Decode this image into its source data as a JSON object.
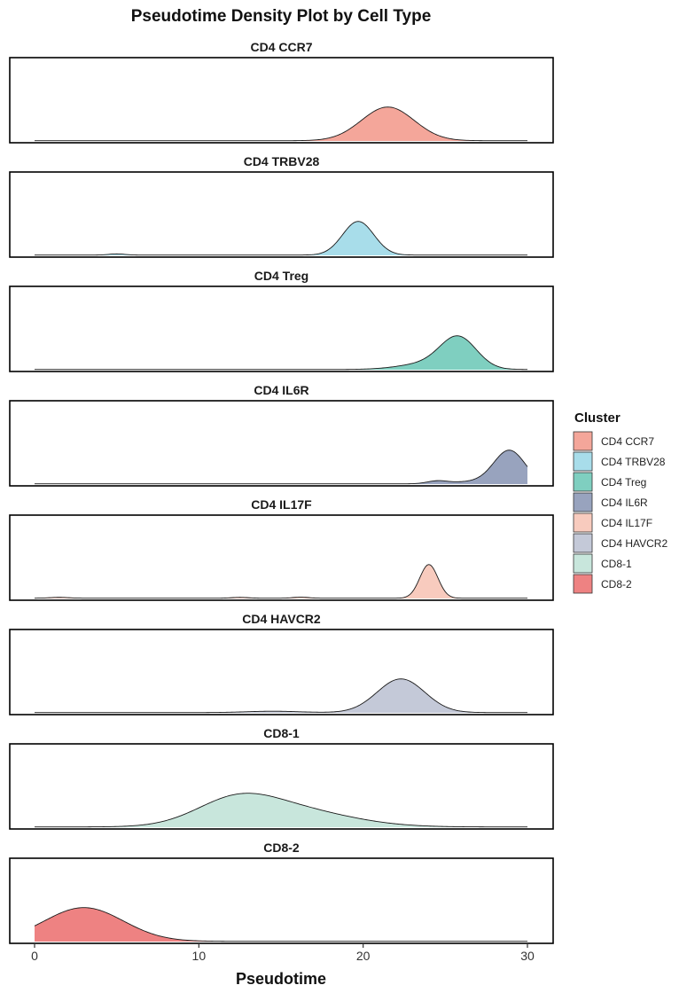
{
  "chart_data": {
    "type": "area",
    "title": "Pseudotime Density Plot by Cell Type",
    "xlabel": "Pseudotime",
    "ylabel": "",
    "xlim": [
      0,
      30
    ],
    "x_ticks": [
      0,
      10,
      20,
      30
    ],
    "grid": false,
    "legend": {
      "title": "Cluster",
      "position": "right"
    },
    "panels": [
      {
        "name": "CD4 CCR7",
        "color": "#F4A69A",
        "components": [
          {
            "mu": 21.5,
            "sigma": 1.6,
            "h": 1.0
          }
        ]
      },
      {
        "name": "CD4 TRBV28",
        "color": "#A8DDEA",
        "components": [
          {
            "mu": 19.7,
            "sigma": 0.95,
            "h": 1.0
          },
          {
            "mu": 5.0,
            "sigma": 0.5,
            "h": 0.035
          }
        ]
      },
      {
        "name": "CD4 Treg",
        "color": "#7FCFC0",
        "components": [
          {
            "mu": 25.8,
            "sigma": 1.1,
            "h": 1.0
          },
          {
            "mu": 23.8,
            "sigma": 1.6,
            "h": 0.18
          }
        ]
      },
      {
        "name": "CD4 IL6R",
        "color": "#98A3BE",
        "components": [
          {
            "mu": 28.9,
            "sigma": 0.95,
            "h": 1.0
          },
          {
            "mu": 24.5,
            "sigma": 0.6,
            "h": 0.08
          },
          {
            "mu": 26.5,
            "sigma": 1.2,
            "h": 0.06
          }
        ]
      },
      {
        "name": "CD4 IL17F",
        "color": "#F8CBBE",
        "components": [
          {
            "mu": 24.0,
            "sigma": 0.55,
            "h": 1.0
          },
          {
            "mu": 1.5,
            "sigma": 0.6,
            "h": 0.025
          },
          {
            "mu": 12.5,
            "sigma": 0.5,
            "h": 0.025
          },
          {
            "mu": 16.2,
            "sigma": 0.5,
            "h": 0.03
          }
        ]
      },
      {
        "name": "CD4 HAVCR2",
        "color": "#C4C9D8",
        "components": [
          {
            "mu": 22.3,
            "sigma": 1.45,
            "h": 1.0
          },
          {
            "mu": 14.5,
            "sigma": 1.6,
            "h": 0.04
          }
        ]
      },
      {
        "name": "CD8-1",
        "color": "#C8E6DC",
        "components": [
          {
            "mu": 12.2,
            "sigma": 2.4,
            "h": 0.55
          },
          {
            "mu": 15.5,
            "sigma": 3.5,
            "h": 0.45
          }
        ]
      },
      {
        "name": "CD8-2",
        "color": "#EE8282",
        "components": [
          {
            "mu": 3.0,
            "sigma": 2.4,
            "h": 1.0
          }
        ]
      }
    ]
  }
}
